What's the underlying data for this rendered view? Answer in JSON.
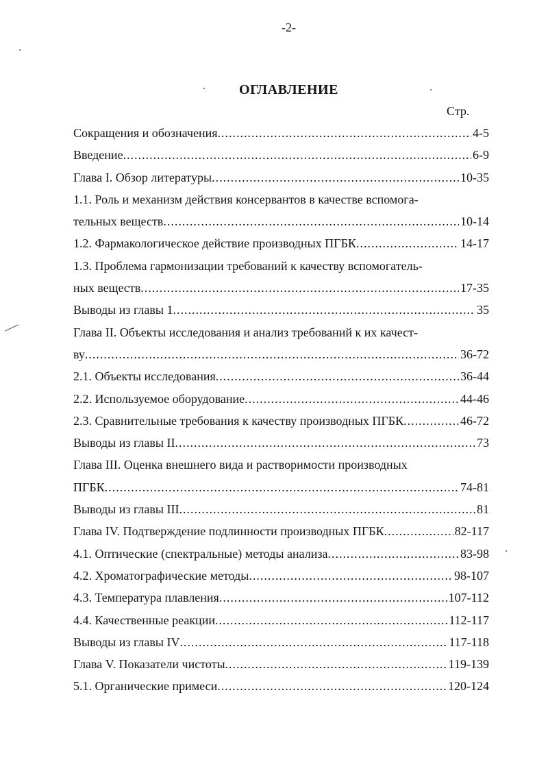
{
  "page_number": "-2-",
  "heading": "ОГЛАВЛЕНИЕ",
  "page_column_label": "Стр.",
  "entries": [
    {
      "lines": [
        {
          "text": "Сокращения и обозначения",
          "page": "4-5"
        }
      ]
    },
    {
      "lines": [
        {
          "text": "Введение",
          "page": "6-9"
        }
      ]
    },
    {
      "lines": [
        {
          "text": "Глава I. Обзор литературы",
          "page": "10-35"
        }
      ]
    },
    {
      "lines": [
        {
          "text": "1.1. Роль и механизм действия консервантов в качестве вспомога-"
        },
        {
          "text": "тельных веществ ",
          "page": "10-14"
        }
      ]
    },
    {
      "lines": [
        {
          "text": "1.2. Фармакологическое действие производных ПГБК",
          "page": "14-17"
        }
      ]
    },
    {
      "lines": [
        {
          "text": "1.3. Проблема гармонизации требований к качеству вспомогатель-"
        },
        {
          "text": "ных веществ",
          "page": "17-35"
        }
      ]
    },
    {
      "lines": [
        {
          "text": "Выводы из главы 1",
          "page": "35"
        }
      ]
    },
    {
      "lines": [
        {
          "text": "Глава II. Объекты исследования и анализ требований к их качест-"
        },
        {
          "text": "ву",
          "page": "36-72"
        }
      ]
    },
    {
      "lines": [
        {
          "text": "2.1. Объекты исследования",
          "page": "36-44"
        }
      ]
    },
    {
      "lines": [
        {
          "text": "2.2. Используемое оборудование",
          "page": "44-46"
        }
      ]
    },
    {
      "lines": [
        {
          "text": "2.3. Сравнительные требования к качеству производных ПГБК",
          "page": "46-72"
        }
      ]
    },
    {
      "lines": [
        {
          "text": "Выводы из главы II",
          "page": "73"
        }
      ]
    },
    {
      "lines": [
        {
          "text": "Глава III. Оценка внешнего вида и растворимости производных"
        },
        {
          "text": "ПГБК",
          "page": "74-81"
        }
      ]
    },
    {
      "lines": [
        {
          "text": "Выводы из главы III",
          "page": "81"
        }
      ]
    },
    {
      "lines": [
        {
          "text": "Глава IV. Подтверждение подлинности производных ПГБК",
          "page": "82-117"
        }
      ]
    },
    {
      "lines": [
        {
          "text": "4.1. Оптические (спектральные) методы анализа",
          "page": "83-98"
        }
      ]
    },
    {
      "lines": [
        {
          "text": "4.2. Хроматографические методы",
          "page": "98-107"
        }
      ]
    },
    {
      "lines": [
        {
          "text": "4.3. Температура плавления",
          "page": "107-112"
        }
      ]
    },
    {
      "lines": [
        {
          "text": "4.4. Качественные реакции",
          "page": "112-117"
        }
      ]
    },
    {
      "lines": [
        {
          "text": "Выводы из главы IV",
          "page": "117-118"
        }
      ]
    },
    {
      "lines": [
        {
          "text": "Глава V. Показатели чистоты",
          "page": "119-139"
        }
      ]
    },
    {
      "lines": [
        {
          "text": "5.1. Органические примеси",
          "page": "120-124"
        }
      ]
    }
  ]
}
